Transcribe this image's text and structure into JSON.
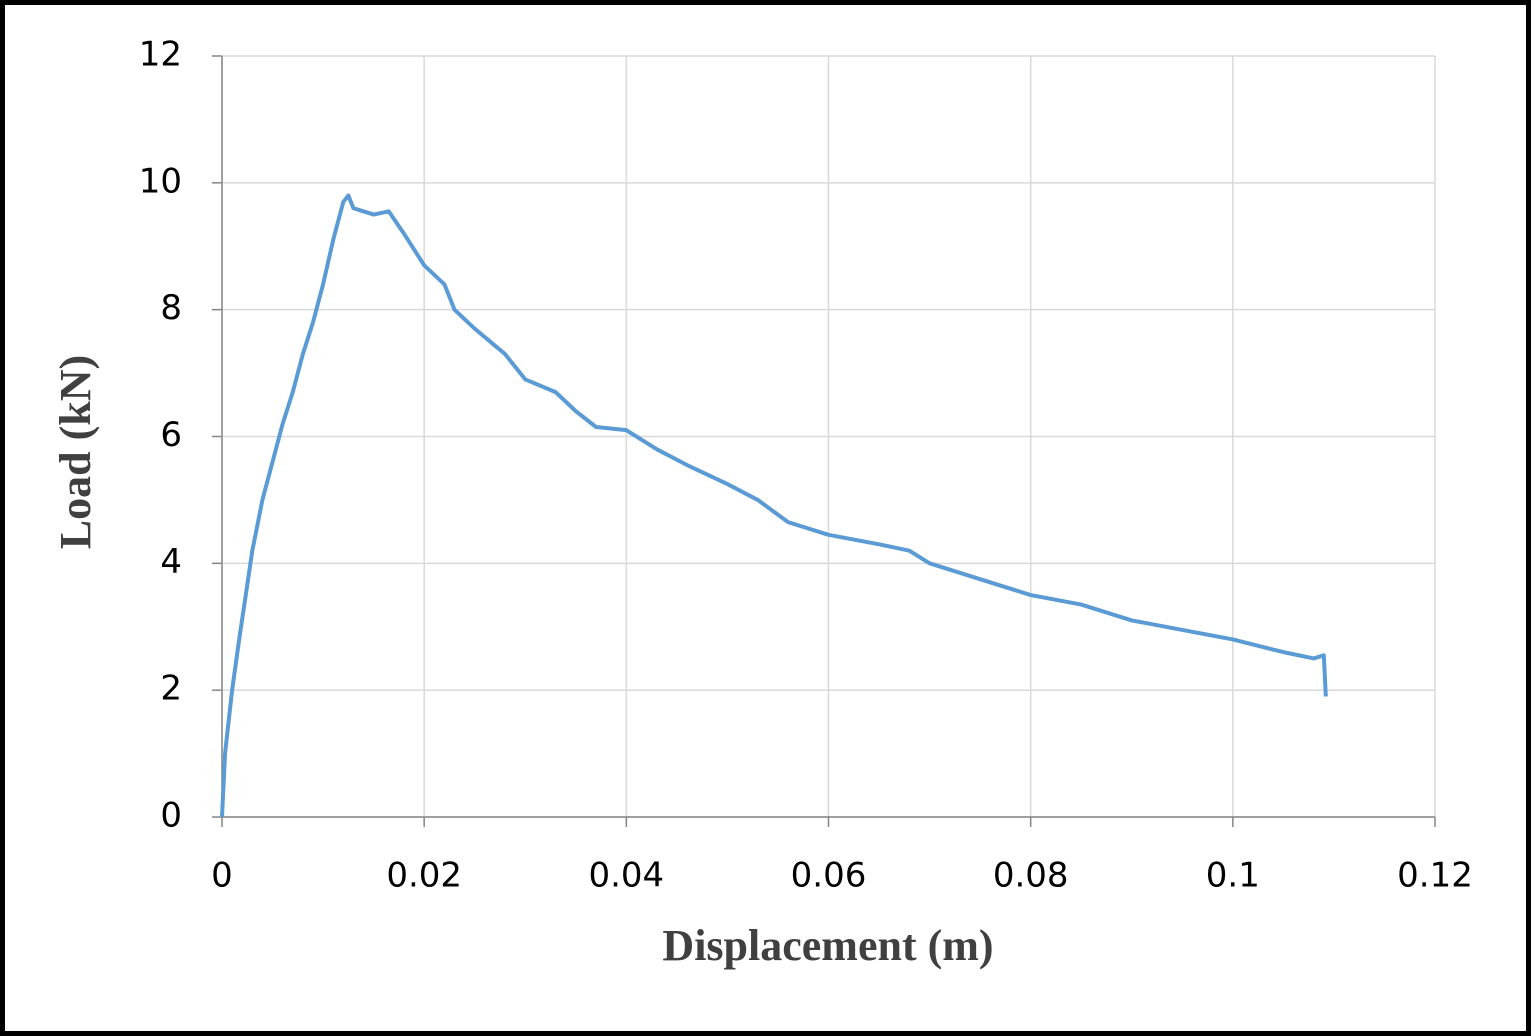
{
  "chart_data": {
    "type": "line",
    "x_label": "Displacement (m)",
    "y_label": "Load (kN)",
    "color": "#5b9bd5",
    "grid": true,
    "x": [
      0,
      0.0003,
      0.001,
      0.0017,
      0.003,
      0.004,
      0.005,
      0.006,
      0.007,
      0.008,
      0.009,
      0.01,
      0.011,
      0.012,
      0.0125,
      0.013,
      0.015,
      0.0165,
      0.018,
      0.02,
      0.022,
      0.023,
      0.025,
      0.028,
      0.03,
      0.033,
      0.035,
      0.037,
      0.04,
      0.043,
      0.046,
      0.05,
      0.053,
      0.056,
      0.06,
      0.065,
      0.068,
      0.07,
      0.075,
      0.08,
      0.085,
      0.09,
      0.095,
      0.1,
      0.105,
      0.108,
      0.109,
      0.1092
    ],
    "values": [
      0,
      1.0,
      2.0,
      2.8,
      4.2,
      5.0,
      5.6,
      6.2,
      6.7,
      7.3,
      7.8,
      8.4,
      9.1,
      9.7,
      9.8,
      9.6,
      9.5,
      9.55,
      9.2,
      8.7,
      8.4,
      8.0,
      7.7,
      7.3,
      6.9,
      6.7,
      6.4,
      6.15,
      6.1,
      5.8,
      5.55,
      5.25,
      5.0,
      4.65,
      4.45,
      4.3,
      4.2,
      4.0,
      3.75,
      3.5,
      3.35,
      3.1,
      2.95,
      2.8,
      2.6,
      2.5,
      2.55,
      1.9
    ],
    "xlim": [
      0,
      0.12
    ],
    "xticks": [
      0,
      0.02,
      0.04,
      0.06,
      0.08,
      0.1,
      0.12
    ],
    "ylim": [
      0,
      12
    ],
    "yticks": [
      0,
      2,
      4,
      6,
      8,
      10,
      12
    ]
  }
}
